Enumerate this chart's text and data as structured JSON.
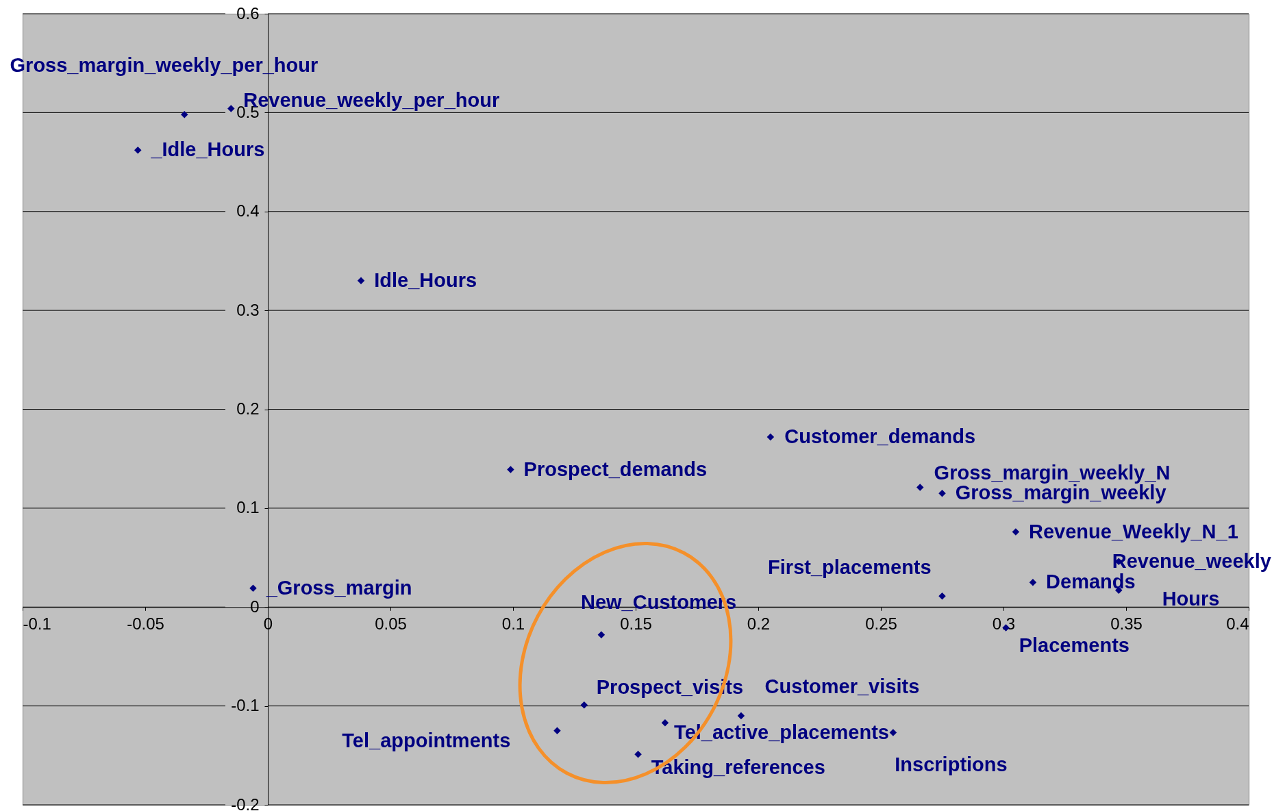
{
  "chart_data": {
    "type": "scatter",
    "marker": "diamond",
    "grid": "y",
    "xlim": [
      -0.1,
      0.4
    ],
    "xticks": [
      -0.1,
      -0.05,
      0,
      0.05,
      0.1,
      0.15,
      0.2,
      0.25,
      0.3,
      0.35,
      0.4
    ],
    "ylim": [
      -0.2,
      0.6
    ],
    "yticks": [
      -0.2,
      -0.1,
      0,
      0.1,
      0.2,
      0.3,
      0.4,
      0.5,
      0.6
    ],
    "series": [
      {
        "color": "#000080",
        "x": [
          -0.034,
          -0.015,
          -0.053,
          0.038,
          0.205,
          0.099,
          0.266,
          0.275,
          0.305,
          0.347,
          0.312,
          0.347,
          0.275,
          0.301,
          -0.006,
          0.136,
          0.129,
          0.193,
          0.162,
          0.255,
          0.118,
          0.151
        ],
        "values": [
          0.498,
          0.504,
          0.462,
          0.33,
          0.172,
          0.139,
          0.121,
          0.115,
          0.076,
          0.046,
          0.025,
          0.017,
          0.011,
          -0.021,
          0.019,
          -0.028,
          -0.099,
          -0.11,
          -0.117,
          -0.127,
          -0.125,
          -0.149
        ]
      }
    ],
    "annotations": [
      {
        "text": "Gross_margin_weekly_per_hour",
        "x": -0.034,
        "y": 0.498
      },
      {
        "text": "Revenue_weekly_per_hour",
        "x": -0.015,
        "y": 0.504
      },
      {
        "text": "_Idle_Hours",
        "x": -0.053,
        "y": 0.462
      },
      {
        "text": "Idle_Hours",
        "x": 0.038,
        "y": 0.33
      },
      {
        "text": "Customer_demands",
        "x": 0.205,
        "y": 0.172
      },
      {
        "text": "Prospect_demands",
        "x": 0.099,
        "y": 0.139
      },
      {
        "text": "Gross_margin_weekly_N",
        "x": 0.266,
        "y": 0.121
      },
      {
        "text": "Gross_margin_weekly",
        "x": 0.275,
        "y": 0.115
      },
      {
        "text": "Revenue_Weekly_N_1",
        "x": 0.305,
        "y": 0.076
      },
      {
        "text": "Revenue_weekly",
        "x": 0.347,
        "y": 0.046
      },
      {
        "text": "Demands",
        "x": 0.312,
        "y": 0.025
      },
      {
        "text": "Hours",
        "x": 0.347,
        "y": 0.017
      },
      {
        "text": "First_placements",
        "x": 0.275,
        "y": 0.011
      },
      {
        "text": "Placements",
        "x": 0.301,
        "y": -0.021
      },
      {
        "text": "_Gross_margin",
        "x": -0.006,
        "y": 0.019
      },
      {
        "text": "New_Customers",
        "x": 0.136,
        "y": -0.028
      },
      {
        "text": "Prospect_visits",
        "x": 0.129,
        "y": -0.099
      },
      {
        "text": "Customer_visits",
        "x": 0.193,
        "y": -0.11
      },
      {
        "text": "Tel_active_placements",
        "x": 0.162,
        "y": -0.117
      },
      {
        "text": "Inscriptions",
        "x": 0.255,
        "y": -0.127
      },
      {
        "text": "Tel_appointments",
        "x": 0.118,
        "y": -0.125
      },
      {
        "text": "Taking_references",
        "x": 0.151,
        "y": -0.149
      }
    ]
  }
}
